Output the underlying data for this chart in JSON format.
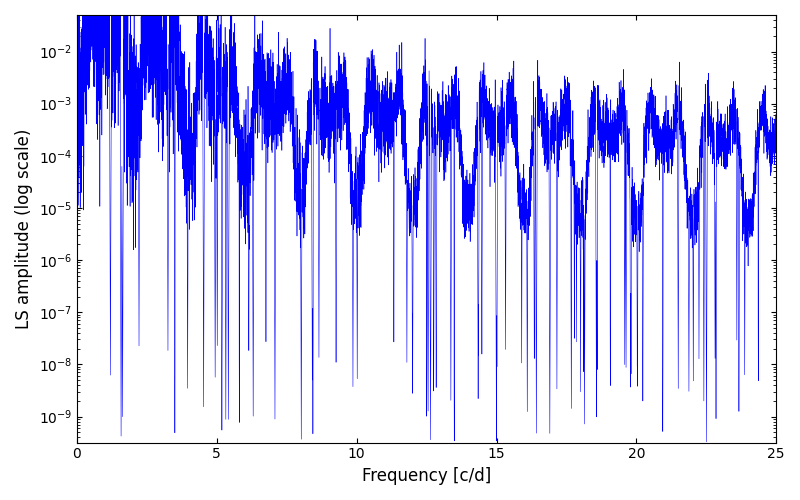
{
  "title": "",
  "xlabel": "Frequency [c/d]",
  "ylabel": "LS amplitude (log scale)",
  "line_color": "#0000ff",
  "xlim": [
    0,
    25
  ],
  "ylim_log_min": -9.5,
  "ylim_log_max": -1.3,
  "freq_min": 0.001,
  "freq_max": 25.0,
  "n_points": 8000,
  "background_color": "#ffffff",
  "figsize": [
    8.0,
    5.0
  ],
  "dpi": 100
}
